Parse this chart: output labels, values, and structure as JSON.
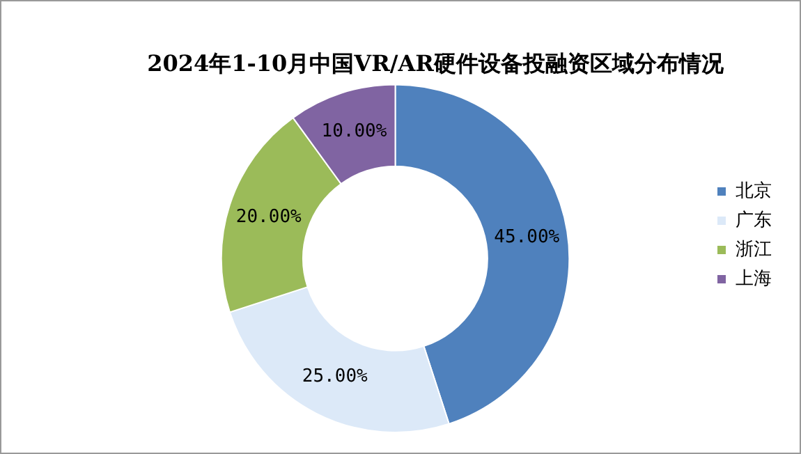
{
  "chart_data": {
    "type": "donut",
    "title": "2024年1-10月中国VR/AR硬件设备投融资区域分布情况",
    "categories": [
      "北京",
      "广东",
      "浙江",
      "上海"
    ],
    "values": [
      45,
      25,
      20,
      10
    ],
    "colors": [
      "#4f81bd",
      "#dce9f8",
      "#9bbb59",
      "#8064a2"
    ],
    "value_labels": [
      "45.00%",
      "25.00%",
      "20.00%",
      "10.00%"
    ],
    "legend": "right"
  }
}
